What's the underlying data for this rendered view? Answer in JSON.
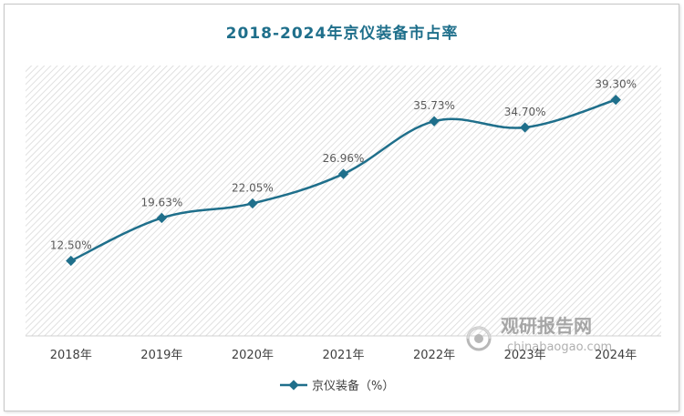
{
  "title": "2018-2024年京仪装备市占率",
  "chart_data": {
    "type": "line",
    "title": "2018-2024年京仪装备市占率",
    "categories": [
      "2018年",
      "2019年",
      "2020年",
      "2021年",
      "2022年",
      "2023年",
      "2024年"
    ],
    "series": [
      {
        "name": "京仪装备（%）",
        "values": [
          12.5,
          19.63,
          22.05,
          26.96,
          35.73,
          34.7,
          39.3
        ],
        "labels": [
          "12.50%",
          "19.63%",
          "22.05%",
          "26.96%",
          "35.73%",
          "34.70%",
          "39.30%"
        ],
        "color": "#1f6f8b"
      }
    ],
    "xlabel": "",
    "ylabel": "",
    "ylim": [
      0,
      45
    ],
    "grid": false,
    "legend_position": "bottom",
    "smooth": true,
    "marker": "diamond"
  },
  "watermark": {
    "name": "观研报告网",
    "url": "chinabaogao.com"
  }
}
